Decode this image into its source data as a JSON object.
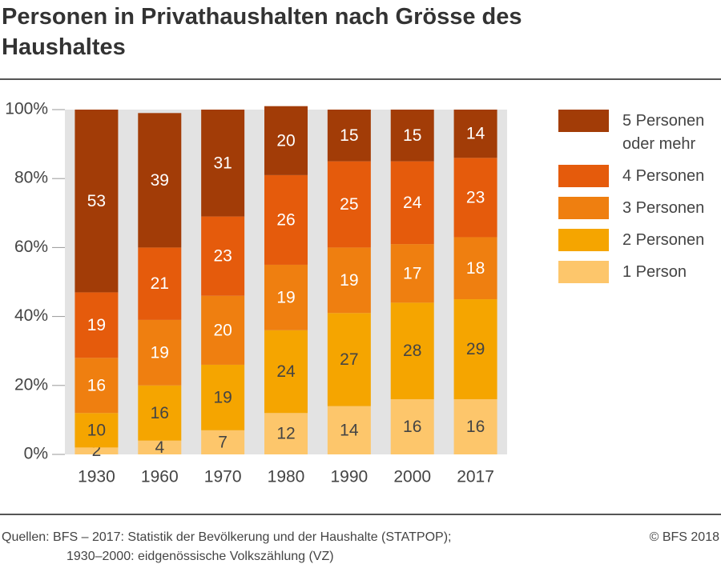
{
  "chart_data": {
    "type": "stacked_bar",
    "title": "Personen in Privathaushalten nach Grösse des Haushaltes",
    "categories": [
      "1930",
      "1960",
      "1970",
      "1980",
      "1990",
      "2000",
      "2017"
    ],
    "series": [
      {
        "name": "1 Person",
        "color": "#fdc66b",
        "values": [
          2,
          4,
          7,
          12,
          14,
          16,
          16
        ]
      },
      {
        "name": "2 Personen",
        "color": "#f5a500",
        "values": [
          10,
          16,
          19,
          24,
          27,
          28,
          29
        ]
      },
      {
        "name": "3 Personen",
        "color": "#ef7f10",
        "values": [
          16,
          19,
          20,
          19,
          19,
          17,
          18
        ]
      },
      {
        "name": "4 Personen",
        "color": "#e55b0c",
        "values": [
          19,
          21,
          23,
          26,
          25,
          24,
          23
        ]
      },
      {
        "name": "5 Personen oder mehr",
        "color": "#a23c07",
        "values": [
          53,
          39,
          31,
          20,
          15,
          15,
          14
        ]
      }
    ],
    "ylim": [
      0,
      100
    ],
    "yticks": [
      {
        "value": 0,
        "label": "0%"
      },
      {
        "value": 20,
        "label": "20%"
      },
      {
        "value": 40,
        "label": "40%"
      },
      {
        "value": 60,
        "label": "60%"
      },
      {
        "value": 80,
        "label": "80%"
      },
      {
        "value": 100,
        "label": "100%"
      }
    ],
    "legend": "right",
    "source": [
      "Quellen: BFS – 2017: Statistik der Bevölkerung und der Haushalte (STATPOP);",
      "1930–2000: eidgenössische Volkszählung (VZ)"
    ],
    "copyright": "© BFS 2018"
  }
}
